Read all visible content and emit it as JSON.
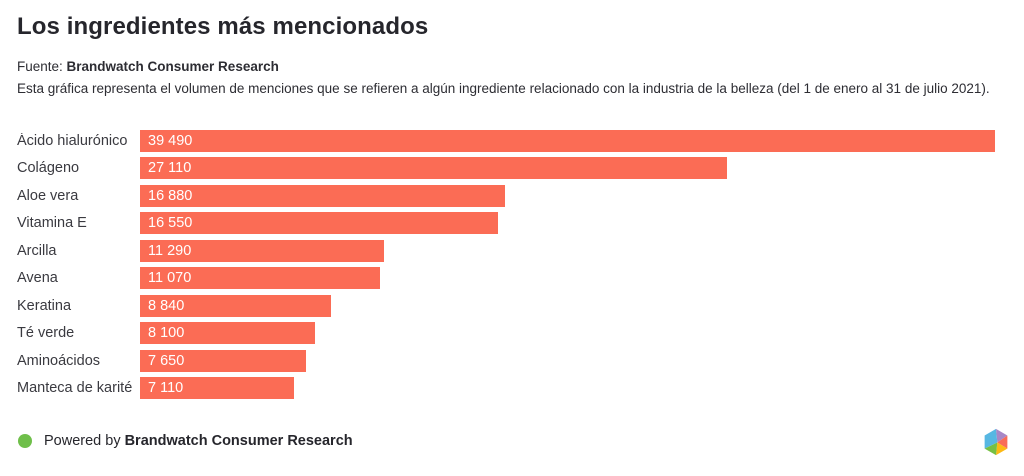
{
  "header": {
    "title": "Los ingredientes más mencionados",
    "source_prefix": "Fuente: ",
    "source_name": "Brandwatch Consumer Research",
    "description": "Esta gráfica representa el volumen de menciones que se refieren a algún ingrediente relacionado con la industria de la belleza (del 1 de enero al 31 de julio 2021)."
  },
  "chart_data": {
    "type": "bar",
    "orientation": "horizontal",
    "title": "Los ingredientes más mencionados",
    "categories": [
      "Ácido hialurónico",
      "Colágeno",
      "Aloe vera",
      "Vitamina E",
      "Arcilla",
      "Avena",
      "Keratina",
      "Té verde",
      "Aminoácidos",
      "Manteca de karité"
    ],
    "values": [
      39490,
      27110,
      16880,
      16550,
      11290,
      11070,
      8840,
      8100,
      7650,
      7110
    ],
    "value_labels": [
      "39 490",
      "27 110",
      "16 880",
      "16 550",
      "11 290",
      "11 070",
      "8 840",
      "8 100",
      "7 650",
      "7 110"
    ],
    "xlim": [
      0,
      39490
    ],
    "bar_color": "#fb6c55",
    "grid": false,
    "legend": false,
    "value_label_position": "inside-start"
  },
  "footer": {
    "powered_by_prefix": "Powered by",
    "powered_by_name": "Brandwatch Consumer Research",
    "dot_color": "#6fbf4a",
    "logo_name": "brandwatch-hexagon-logo",
    "logo_colors": {
      "blue": "#57b7e2",
      "purple": "#a887c6",
      "coral": "#f96c57",
      "yellow": "#fdb913",
      "green": "#77c043"
    }
  }
}
